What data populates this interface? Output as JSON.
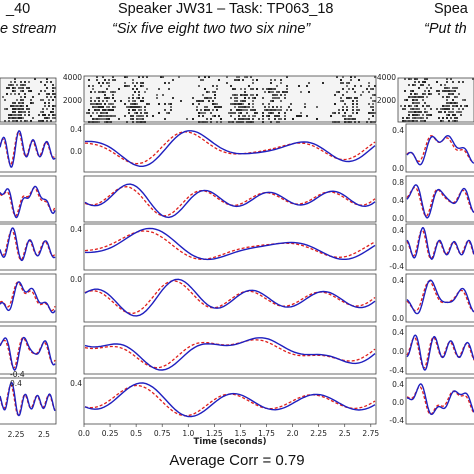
{
  "left_panel": {
    "title": "_40",
    "subtitle": "e stream"
  },
  "center_panel": {
    "title": "Speaker JW31 – Task: TP063_18",
    "subtitle": "“Six five eight two two six nine”"
  },
  "right_panel": {
    "title": "Spea",
    "subtitle": "“Put th"
  },
  "footer": {
    "average_corr": "Average Corr = 0.79"
  },
  "colors": {
    "measured": "#1f1fbf",
    "predicted": "#e0201c"
  },
  "chart_data": {
    "type": "line",
    "title": "Speaker JW31 – Task: TP063_18",
    "subtitle": "“Six five eight two two six nine”",
    "xlabel": "Time (seconds)",
    "x_ticks": [
      "0.0",
      "0.25",
      "0.5",
      "0.75",
      "1.0",
      "1.25",
      "1.5",
      "1.75",
      "2.0",
      "2.25",
      "2.5",
      "2.75"
    ],
    "xlim": [
      0,
      2.8
    ],
    "spectrogram_ticks": [
      "4000",
      "2000"
    ],
    "left_x_ticks": [
      "2.25",
      "2.5"
    ],
    "left_y_ticks": [
      "0.4",
      "-0.4"
    ],
    "center_y_ticks": [
      [
        "0.4",
        "0.0"
      ],
      [],
      [
        "0.4"
      ],
      [
        "0.0"
      ],
      [],
      [
        "0.4"
      ]
    ],
    "right_y_ticks": [
      [
        "0.4",
        "0.0"
      ],
      [
        "0.8",
        "0.4",
        "0.0"
      ],
      [
        "0.4",
        "0.0",
        "-0.4"
      ],
      [
        "0.4",
        "0.0"
      ],
      [
        "0.4",
        "0.0",
        "-0.4"
      ],
      [
        "0.4",
        "0.0",
        "-0.4"
      ]
    ],
    "average_corr": "Average Corr = 0.79",
    "series": [
      {
        "style": "solid",
        "color": "#1f1fbf"
      },
      {
        "style": "dashed",
        "color": "#e0201c"
      }
    ]
  }
}
